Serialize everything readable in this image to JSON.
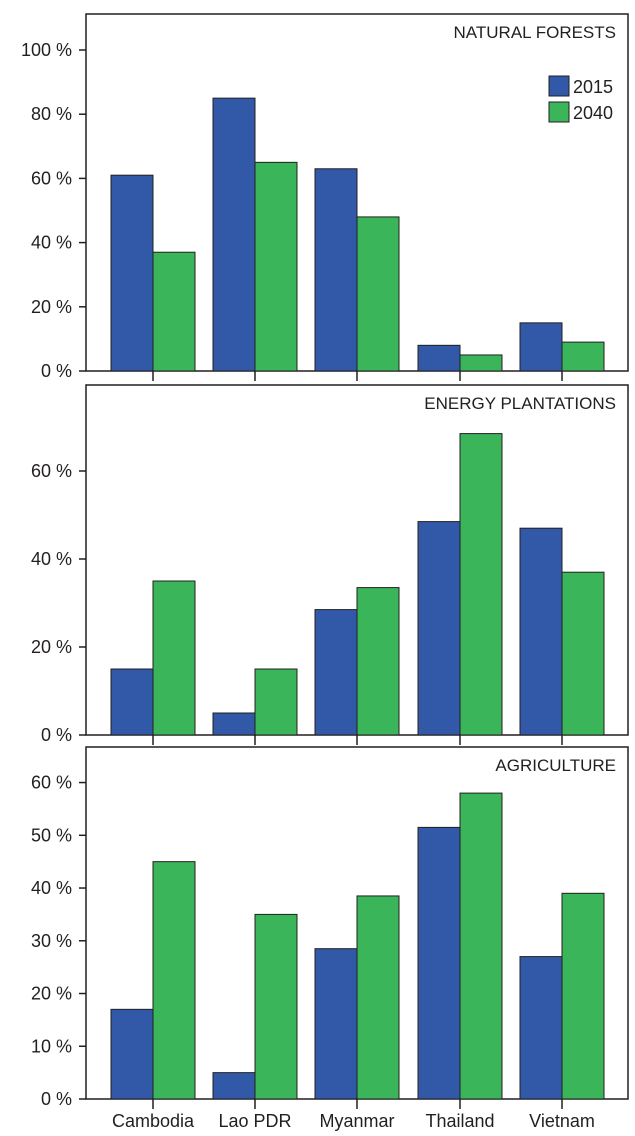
{
  "chart_data": [
    {
      "type": "bar",
      "title": "NATURAL FORESTS",
      "categories": [
        "Cambodia",
        "Lao PDR",
        "Myanmar",
        "Thailand",
        "Vietnam"
      ],
      "series": [
        {
          "name": "2015",
          "color": "#3259a8",
          "values": [
            61,
            85,
            63,
            8,
            15
          ]
        },
        {
          "name": "2040",
          "color": "#3bb55a",
          "values": [
            37,
            65,
            48,
            5,
            9
          ]
        }
      ],
      "yticks": [
        "0 %",
        "20 %",
        "40 %",
        "60 %",
        "80 %",
        "100 %"
      ],
      "ylim": [
        0,
        100
      ],
      "legend": "top-right",
      "grid": false
    },
    {
      "type": "bar",
      "title": "ENERGY PLANTATIONS",
      "categories": [
        "Cambodia",
        "Lao PDR",
        "Myanmar",
        "Thailand",
        "Vietnam"
      ],
      "series": [
        {
          "name": "2015",
          "color": "#3259a8",
          "values": [
            15,
            5,
            28.5,
            48.5,
            47
          ]
        },
        {
          "name": "2040",
          "color": "#3bb55a",
          "values": [
            35,
            15,
            33.5,
            68.5,
            37
          ]
        }
      ],
      "yticks": [
        "0 %",
        "20 %",
        "40 %",
        "60 %"
      ],
      "ylim": [
        0,
        70
      ],
      "grid": false
    },
    {
      "type": "bar",
      "title": "AGRICULTURE",
      "categories": [
        "Cambodia",
        "Lao PDR",
        "Myanmar",
        "Thailand",
        "Vietnam"
      ],
      "series": [
        {
          "name": "2015",
          "color": "#3259a8",
          "values": [
            17,
            5,
            28.5,
            51.5,
            27
          ]
        },
        {
          "name": "2040",
          "color": "#3bb55a",
          "values": [
            45,
            35,
            38.5,
            58,
            39
          ]
        }
      ],
      "yticks": [
        "0 %",
        "10 %",
        "20 %",
        "30 %",
        "40 %",
        "50 %",
        "60 %"
      ],
      "ylim": [
        0,
        62
      ],
      "grid": false
    }
  ],
  "category_labels": [
    "Cambodia",
    "Lao PDR",
    "Myanmar",
    "Thailand",
    "Vietnam"
  ]
}
